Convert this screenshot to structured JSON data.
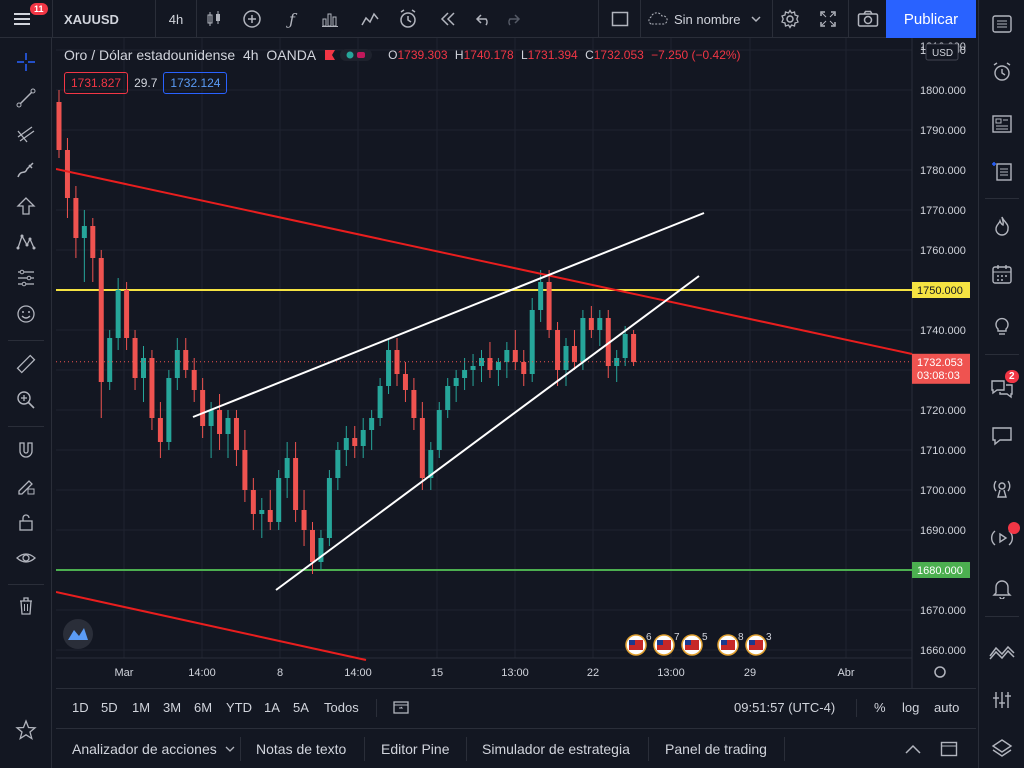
{
  "topbar": {
    "notification_count": "11",
    "symbol": "XAUUSD",
    "interval": "4h",
    "layout_name": "Sin nombre",
    "publish_label": "Publicar"
  },
  "legend": {
    "title": "Oro / Dólar estadounidense",
    "interval": "4h",
    "exchange": "OANDA",
    "o_label": "O",
    "o": "1739.303",
    "h_label": "H",
    "h": "1740.178",
    "l_label": "L",
    "l": "1731.394",
    "c_label": "C",
    "c": "1732.053",
    "change": "−7.250 (−0.42%)",
    "sell": "1731.827",
    "spread": "29.7",
    "buy": "1732.124"
  },
  "price_axis": {
    "currency": "USD",
    "ticks": [
      "1810.000",
      "1800.000",
      "1790.000",
      "1780.000",
      "1770.000",
      "1760.000",
      "1750.000",
      "1740.000",
      "1730.000",
      "1720.000",
      "1710.000",
      "1700.000",
      "1690.000",
      "1680.000",
      "1670.000",
      "1660.000"
    ],
    "last_price": "1732.053",
    "countdown": "03:08:03",
    "yellow_label": "1750.000",
    "green_label": "1680.000"
  },
  "time_axis": {
    "labels": [
      "Mar",
      "14:00",
      "8",
      "14:00",
      "15",
      "13:00",
      "22",
      "13:00",
      "29",
      "Abr"
    ]
  },
  "event_counts": [
    "6",
    "7",
    "5",
    "8",
    "3"
  ],
  "ranges": [
    "1D",
    "5D",
    "1M",
    "3M",
    "6M",
    "YTD",
    "1A",
    "5A",
    "Todos"
  ],
  "clock": "09:51:57 (UTC-4)",
  "scale_opts": {
    "percent": "%",
    "log": "log",
    "auto": "auto"
  },
  "panels": [
    "Analizador de acciones",
    "Notas de texto",
    "Editor Pine",
    "Simulador de estrategia",
    "Panel de trading"
  ],
  "sidebar_badge": "2",
  "colors": {
    "up": "#26a69a",
    "down": "#ef5350",
    "yellow_line": "#f5e342",
    "green_line": "#4caf50",
    "trend_red": "#e91e1e",
    "accent": "#2962ff"
  },
  "chart_data": {
    "type": "candlestick",
    "symbol": "XAUUSD",
    "interval": "4h",
    "ylim": [
      1658,
      1813
    ],
    "horizontal_lines": [
      1750,
      1680
    ],
    "candles": [
      [
        1797,
        1800,
        1783,
        1785
      ],
      [
        1785,
        1788,
        1768,
        1773
      ],
      [
        1773,
        1776,
        1758,
        1763
      ],
      [
        1763,
        1770,
        1752,
        1766
      ],
      [
        1766,
        1768,
        1752,
        1758
      ],
      [
        1758,
        1760,
        1718,
        1727
      ],
      [
        1727,
        1740,
        1725,
        1738
      ],
      [
        1738,
        1753,
        1735,
        1750
      ],
      [
        1750,
        1752,
        1735,
        1738
      ],
      [
        1738,
        1740,
        1725,
        1728
      ],
      [
        1728,
        1736,
        1722,
        1733
      ],
      [
        1733,
        1735,
        1715,
        1718
      ],
      [
        1718,
        1722,
        1708,
        1712
      ],
      [
        1712,
        1730,
        1710,
        1728
      ],
      [
        1728,
        1738,
        1725,
        1735
      ],
      [
        1735,
        1738,
        1728,
        1730
      ],
      [
        1730,
        1733,
        1722,
        1725
      ],
      [
        1725,
        1728,
        1713,
        1716
      ],
      [
        1716,
        1722,
        1708,
        1720
      ],
      [
        1720,
        1724,
        1710,
        1714
      ],
      [
        1714,
        1720,
        1708,
        1718
      ],
      [
        1718,
        1720,
        1706,
        1710
      ],
      [
        1710,
        1715,
        1697,
        1700
      ],
      [
        1700,
        1703,
        1690,
        1694
      ],
      [
        1694,
        1698,
        1688,
        1695
      ],
      [
        1695,
        1700,
        1690,
        1692
      ],
      [
        1692,
        1705,
        1690,
        1703
      ],
      [
        1703,
        1712,
        1698,
        1708
      ],
      [
        1708,
        1712,
        1692,
        1695
      ],
      [
        1695,
        1700,
        1686,
        1690
      ],
      [
        1690,
        1692,
        1679,
        1682
      ],
      [
        1682,
        1690,
        1680,
        1688
      ],
      [
        1688,
        1705,
        1686,
        1703
      ],
      [
        1703,
        1712,
        1700,
        1710
      ],
      [
        1710,
        1716,
        1706,
        1713
      ],
      [
        1713,
        1716,
        1708,
        1711
      ],
      [
        1711,
        1718,
        1708,
        1715
      ],
      [
        1715,
        1720,
        1710,
        1718
      ],
      [
        1718,
        1728,
        1716,
        1726
      ],
      [
        1726,
        1738,
        1724,
        1735
      ],
      [
        1735,
        1738,
        1726,
        1729
      ],
      [
        1729,
        1732,
        1722,
        1725
      ],
      [
        1725,
        1728,
        1715,
        1718
      ],
      [
        1718,
        1722,
        1700,
        1703
      ],
      [
        1703,
        1712,
        1700,
        1710
      ],
      [
        1710,
        1722,
        1708,
        1720
      ],
      [
        1720,
        1728,
        1718,
        1726
      ],
      [
        1726,
        1730,
        1722,
        1728
      ],
      [
        1728,
        1733,
        1725,
        1730
      ],
      [
        1730,
        1734,
        1726,
        1731
      ],
      [
        1731,
        1735,
        1727,
        1733
      ],
      [
        1733,
        1737,
        1728,
        1730
      ],
      [
        1730,
        1733,
        1726,
        1732
      ],
      [
        1732,
        1737,
        1728,
        1735
      ],
      [
        1735,
        1740,
        1730,
        1732
      ],
      [
        1732,
        1735,
        1726,
        1729
      ],
      [
        1729,
        1748,
        1727,
        1745
      ],
      [
        1745,
        1755,
        1742,
        1752
      ],
      [
        1752,
        1755,
        1738,
        1740
      ],
      [
        1740,
        1742,
        1726,
        1730
      ],
      [
        1730,
        1738,
        1726,
        1736
      ],
      [
        1736,
        1740,
        1730,
        1732
      ],
      [
        1732,
        1745,
        1730,
        1743
      ],
      [
        1743,
        1746,
        1738,
        1740
      ],
      [
        1740,
        1745,
        1736,
        1743
      ],
      [
        1743,
        1745,
        1728,
        1731
      ],
      [
        1731,
        1735,
        1727,
        1733
      ],
      [
        1733,
        1741,
        1731,
        1739
      ],
      [
        1739,
        1740,
        1731,
        1732
      ]
    ]
  }
}
